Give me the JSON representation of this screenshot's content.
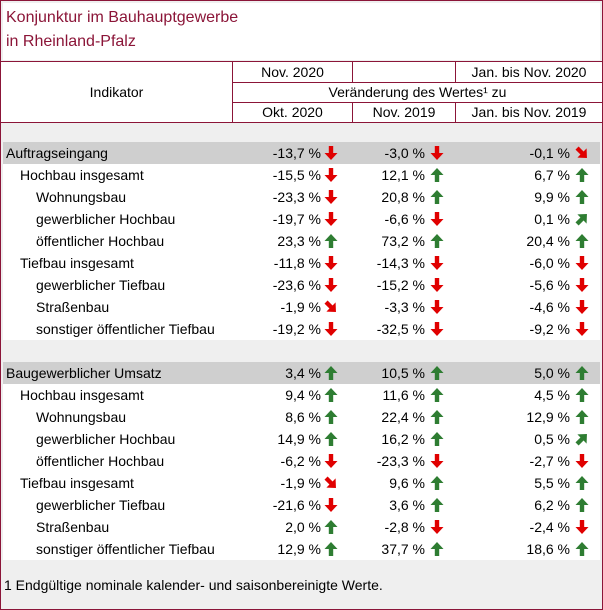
{
  "title": {
    "line1": "Konjunktur im Bauhauptgewerbe",
    "line2": "in Rheinland-Pfalz"
  },
  "header": {
    "indicator": "Indikator",
    "period_current": "Nov. 2020",
    "period_cumulative": "Jan. bis Nov. 2020",
    "change_label": "Veränderung des Wertes¹ zu",
    "col1": "Okt. 2020",
    "col2": "Nov. 2019",
    "col3": "Jan. bis Nov. 2019"
  },
  "colors": {
    "up": "#2e7d32",
    "down": "#e00000",
    "accent": "#8b1538"
  },
  "sections": [
    {
      "rows": [
        {
          "label": "Auftragseingang",
          "level": 0,
          "section": true,
          "v1": "-13,7 %",
          "a1": "down",
          "v2": "-3,0 %",
          "a2": "down",
          "v3": "-0,1 %",
          "a3": "down-right"
        },
        {
          "label": "Hochbau insgesamt",
          "level": 1,
          "v1": "-15,5 %",
          "a1": "down",
          "v2": "12,1 %",
          "a2": "up",
          "v3": "6,7 %",
          "a3": "up"
        },
        {
          "label": "Wohnungsbau",
          "level": 2,
          "v1": "-23,3 %",
          "a1": "down",
          "v2": "20,8 %",
          "a2": "up",
          "v3": "9,9 %",
          "a3": "up"
        },
        {
          "label": "gewerblicher Hochbau",
          "level": 2,
          "v1": "-19,7 %",
          "a1": "down",
          "v2": "-6,6 %",
          "a2": "down",
          "v3": "0,1 %",
          "a3": "up-right"
        },
        {
          "label": "öffentlicher Hochbau",
          "level": 2,
          "v1": "23,3 %",
          "a1": "up",
          "v2": "73,2 %",
          "a2": "up",
          "v3": "20,4 %",
          "a3": "up"
        },
        {
          "label": "Tiefbau insgesamt",
          "level": 1,
          "v1": "-11,8 %",
          "a1": "down",
          "v2": "-14,3 %",
          "a2": "down",
          "v3": "-6,0 %",
          "a3": "down"
        },
        {
          "label": "gewerblicher Tiefbau",
          "level": 2,
          "v1": "-23,6 %",
          "a1": "down",
          "v2": "-15,2 %",
          "a2": "down",
          "v3": "-5,6 %",
          "a3": "down"
        },
        {
          "label": "Straßenbau",
          "level": 2,
          "v1": "-1,9 %",
          "a1": "down-right",
          "v2": "-3,3 %",
          "a2": "down",
          "v3": "-4,6 %",
          "a3": "down"
        },
        {
          "label": "sonstiger öffentlicher Tiefbau",
          "level": 2,
          "v1": "-19,2 %",
          "a1": "down",
          "v2": "-32,5 %",
          "a2": "down",
          "v3": "-9,2 %",
          "a3": "down"
        }
      ]
    },
    {
      "rows": [
        {
          "label": "Baugewerblicher Umsatz",
          "level": 0,
          "section": true,
          "v1": "3,4 %",
          "a1": "up",
          "v2": "10,5 %",
          "a2": "up",
          "v3": "5,0 %",
          "a3": "up"
        },
        {
          "label": "Hochbau insgesamt",
          "level": 1,
          "v1": "9,4 %",
          "a1": "up",
          "v2": "11,6 %",
          "a2": "up",
          "v3": "4,5 %",
          "a3": "up"
        },
        {
          "label": "Wohnungsbau",
          "level": 2,
          "v1": "8,6 %",
          "a1": "up",
          "v2": "22,4 %",
          "a2": "up",
          "v3": "12,9 %",
          "a3": "up"
        },
        {
          "label": "gewerblicher Hochbau",
          "level": 2,
          "v1": "14,9 %",
          "a1": "up",
          "v2": "16,2 %",
          "a2": "up",
          "v3": "0,5 %",
          "a3": "up-right"
        },
        {
          "label": "öffentlicher Hochbau",
          "level": 2,
          "v1": "-6,2 %",
          "a1": "down",
          "v2": "-23,3 %",
          "a2": "down",
          "v3": "-2,7 %",
          "a3": "down"
        },
        {
          "label": "Tiefbau insgesamt",
          "level": 1,
          "v1": "-1,9 %",
          "a1": "down-right",
          "v2": "9,6 %",
          "a2": "up",
          "v3": "5,5 %",
          "a3": "up"
        },
        {
          "label": "gewerblicher Tiefbau",
          "level": 2,
          "v1": "-21,6 %",
          "a1": "down",
          "v2": "3,6 %",
          "a2": "up",
          "v3": "6,2 %",
          "a3": "up"
        },
        {
          "label": "Straßenbau",
          "level": 2,
          "v1": "2,0 %",
          "a1": "up",
          "v2": "-2,8 %",
          "a2": "down",
          "v3": "-2,4 %",
          "a3": "down"
        },
        {
          "label": "sonstiger öffentlicher Tiefbau",
          "level": 2,
          "v1": "12,9 %",
          "a1": "up",
          "v2": "37,7 %",
          "a2": "up",
          "v3": "18,6 %",
          "a3": "up"
        }
      ]
    }
  ],
  "footnote": "1 Endgültige nominale kalender- und saisonbereinigte Werte."
}
